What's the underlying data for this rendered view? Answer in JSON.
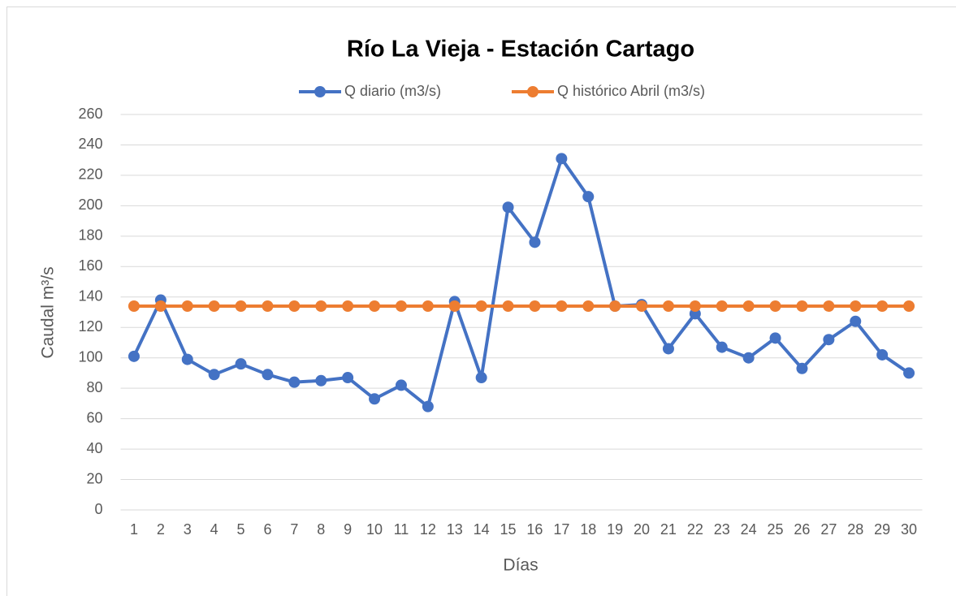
{
  "chart_data": {
    "type": "line",
    "title": "Río La Vieja - Estación Cartago",
    "x_label": "Días",
    "y_label": "Caudal m³/s",
    "categories": [
      1,
      2,
      3,
      4,
      5,
      6,
      7,
      8,
      9,
      10,
      11,
      12,
      13,
      14,
      15,
      16,
      17,
      18,
      19,
      20,
      21,
      22,
      23,
      24,
      25,
      26,
      27,
      28,
      29,
      30
    ],
    "series": [
      {
        "name": "Q diario (m3/s)",
        "color": "#4472c4",
        "values": [
          101,
          138,
          99,
          89,
          96,
          89,
          84,
          85,
          87,
          73,
          82,
          68,
          137,
          87,
          199,
          176,
          231,
          206,
          134,
          135,
          106,
          129,
          107,
          100,
          113,
          93,
          112,
          124,
          102,
          90
        ]
      },
      {
        "name": "Q histórico Abril (m3/s)",
        "color": "#ed7d31",
        "values": [
          134,
          134,
          134,
          134,
          134,
          134,
          134,
          134,
          134,
          134,
          134,
          134,
          134,
          134,
          134,
          134,
          134,
          134,
          134,
          134,
          134,
          134,
          134,
          134,
          134,
          134,
          134,
          134,
          134,
          134
        ]
      }
    ],
    "ylim": [
      0,
      260
    ],
    "yticks": [
      0,
      20,
      40,
      60,
      80,
      100,
      120,
      140,
      160,
      180,
      200,
      220,
      240,
      260
    ],
    "grid": true,
    "legend": "top"
  }
}
